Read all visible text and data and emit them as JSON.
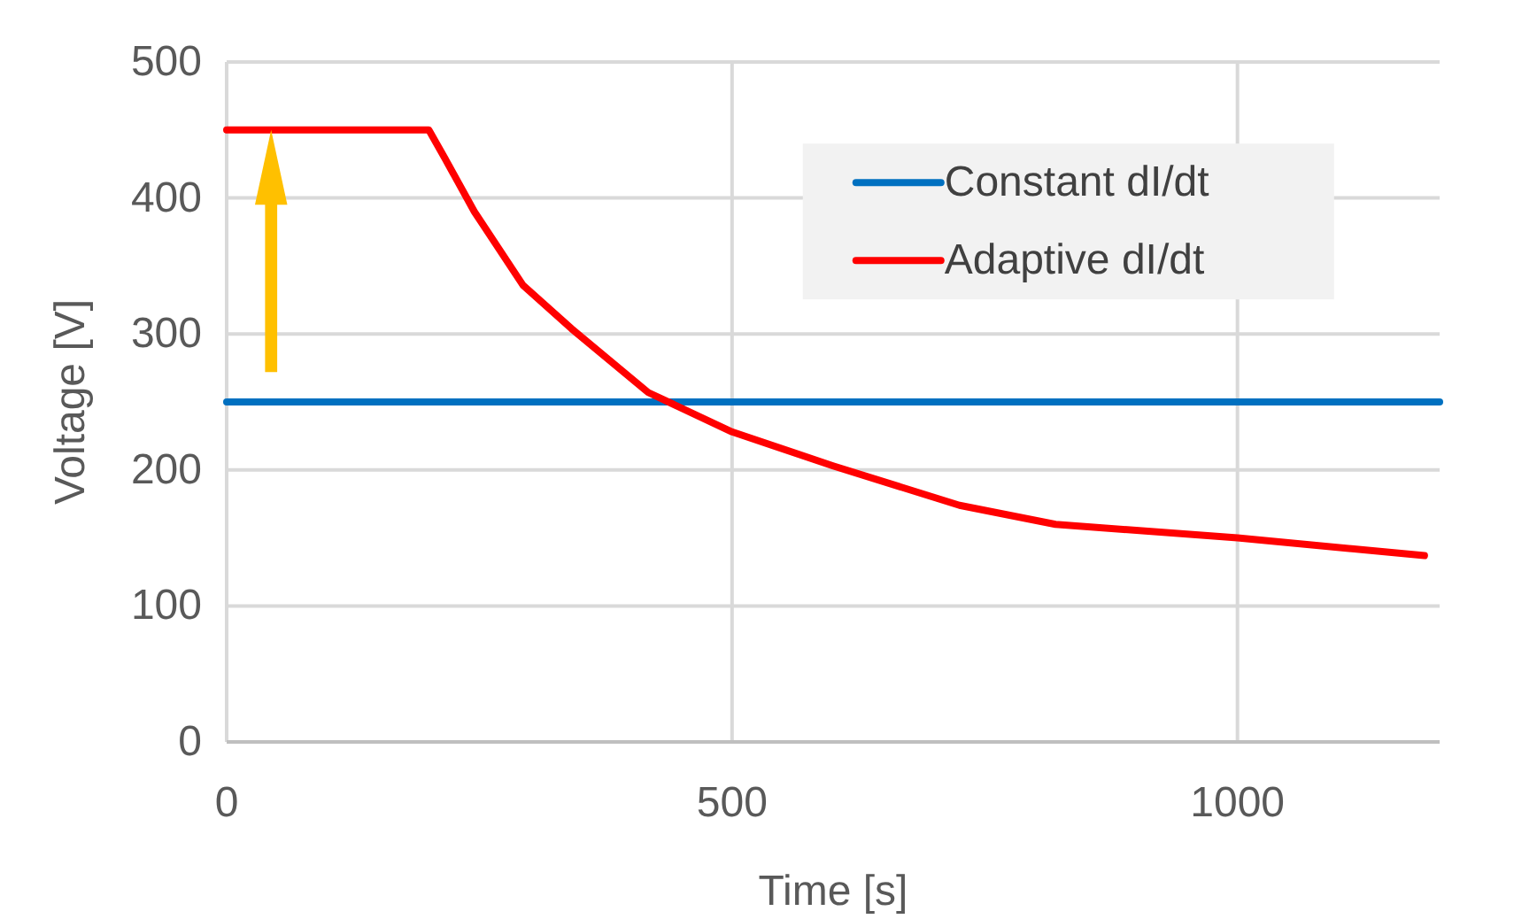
{
  "chart_data": {
    "type": "line",
    "xlabel": "Time [s]",
    "ylabel": "Voltage [V]",
    "xlim": [
      0,
      1200
    ],
    "xticks": [
      0,
      500,
      1000
    ],
    "ylim": [
      0,
      500
    ],
    "yticks": [
      0,
      100,
      200,
      300,
      400,
      500
    ],
    "grid": true,
    "legend": "top right",
    "marker": "none",
    "line_style": "solid",
    "series": [
      {
        "name": "Constant dI/dt",
        "color": "#0070c0",
        "x": [
          0,
          1200
        ],
        "values": [
          250,
          250
        ]
      },
      {
        "name": "Adaptive dI/dt",
        "color": "#ff0000",
        "x": [
          0,
          200,
          216,
          245,
          293,
          341,
          417,
          500,
          600,
          725,
          820,
          1000,
          1185
        ],
        "values": [
          450,
          450,
          429,
          390,
          336,
          304,
          257,
          228,
          203,
          174,
          160,
          150,
          137
        ]
      }
    ]
  }
}
